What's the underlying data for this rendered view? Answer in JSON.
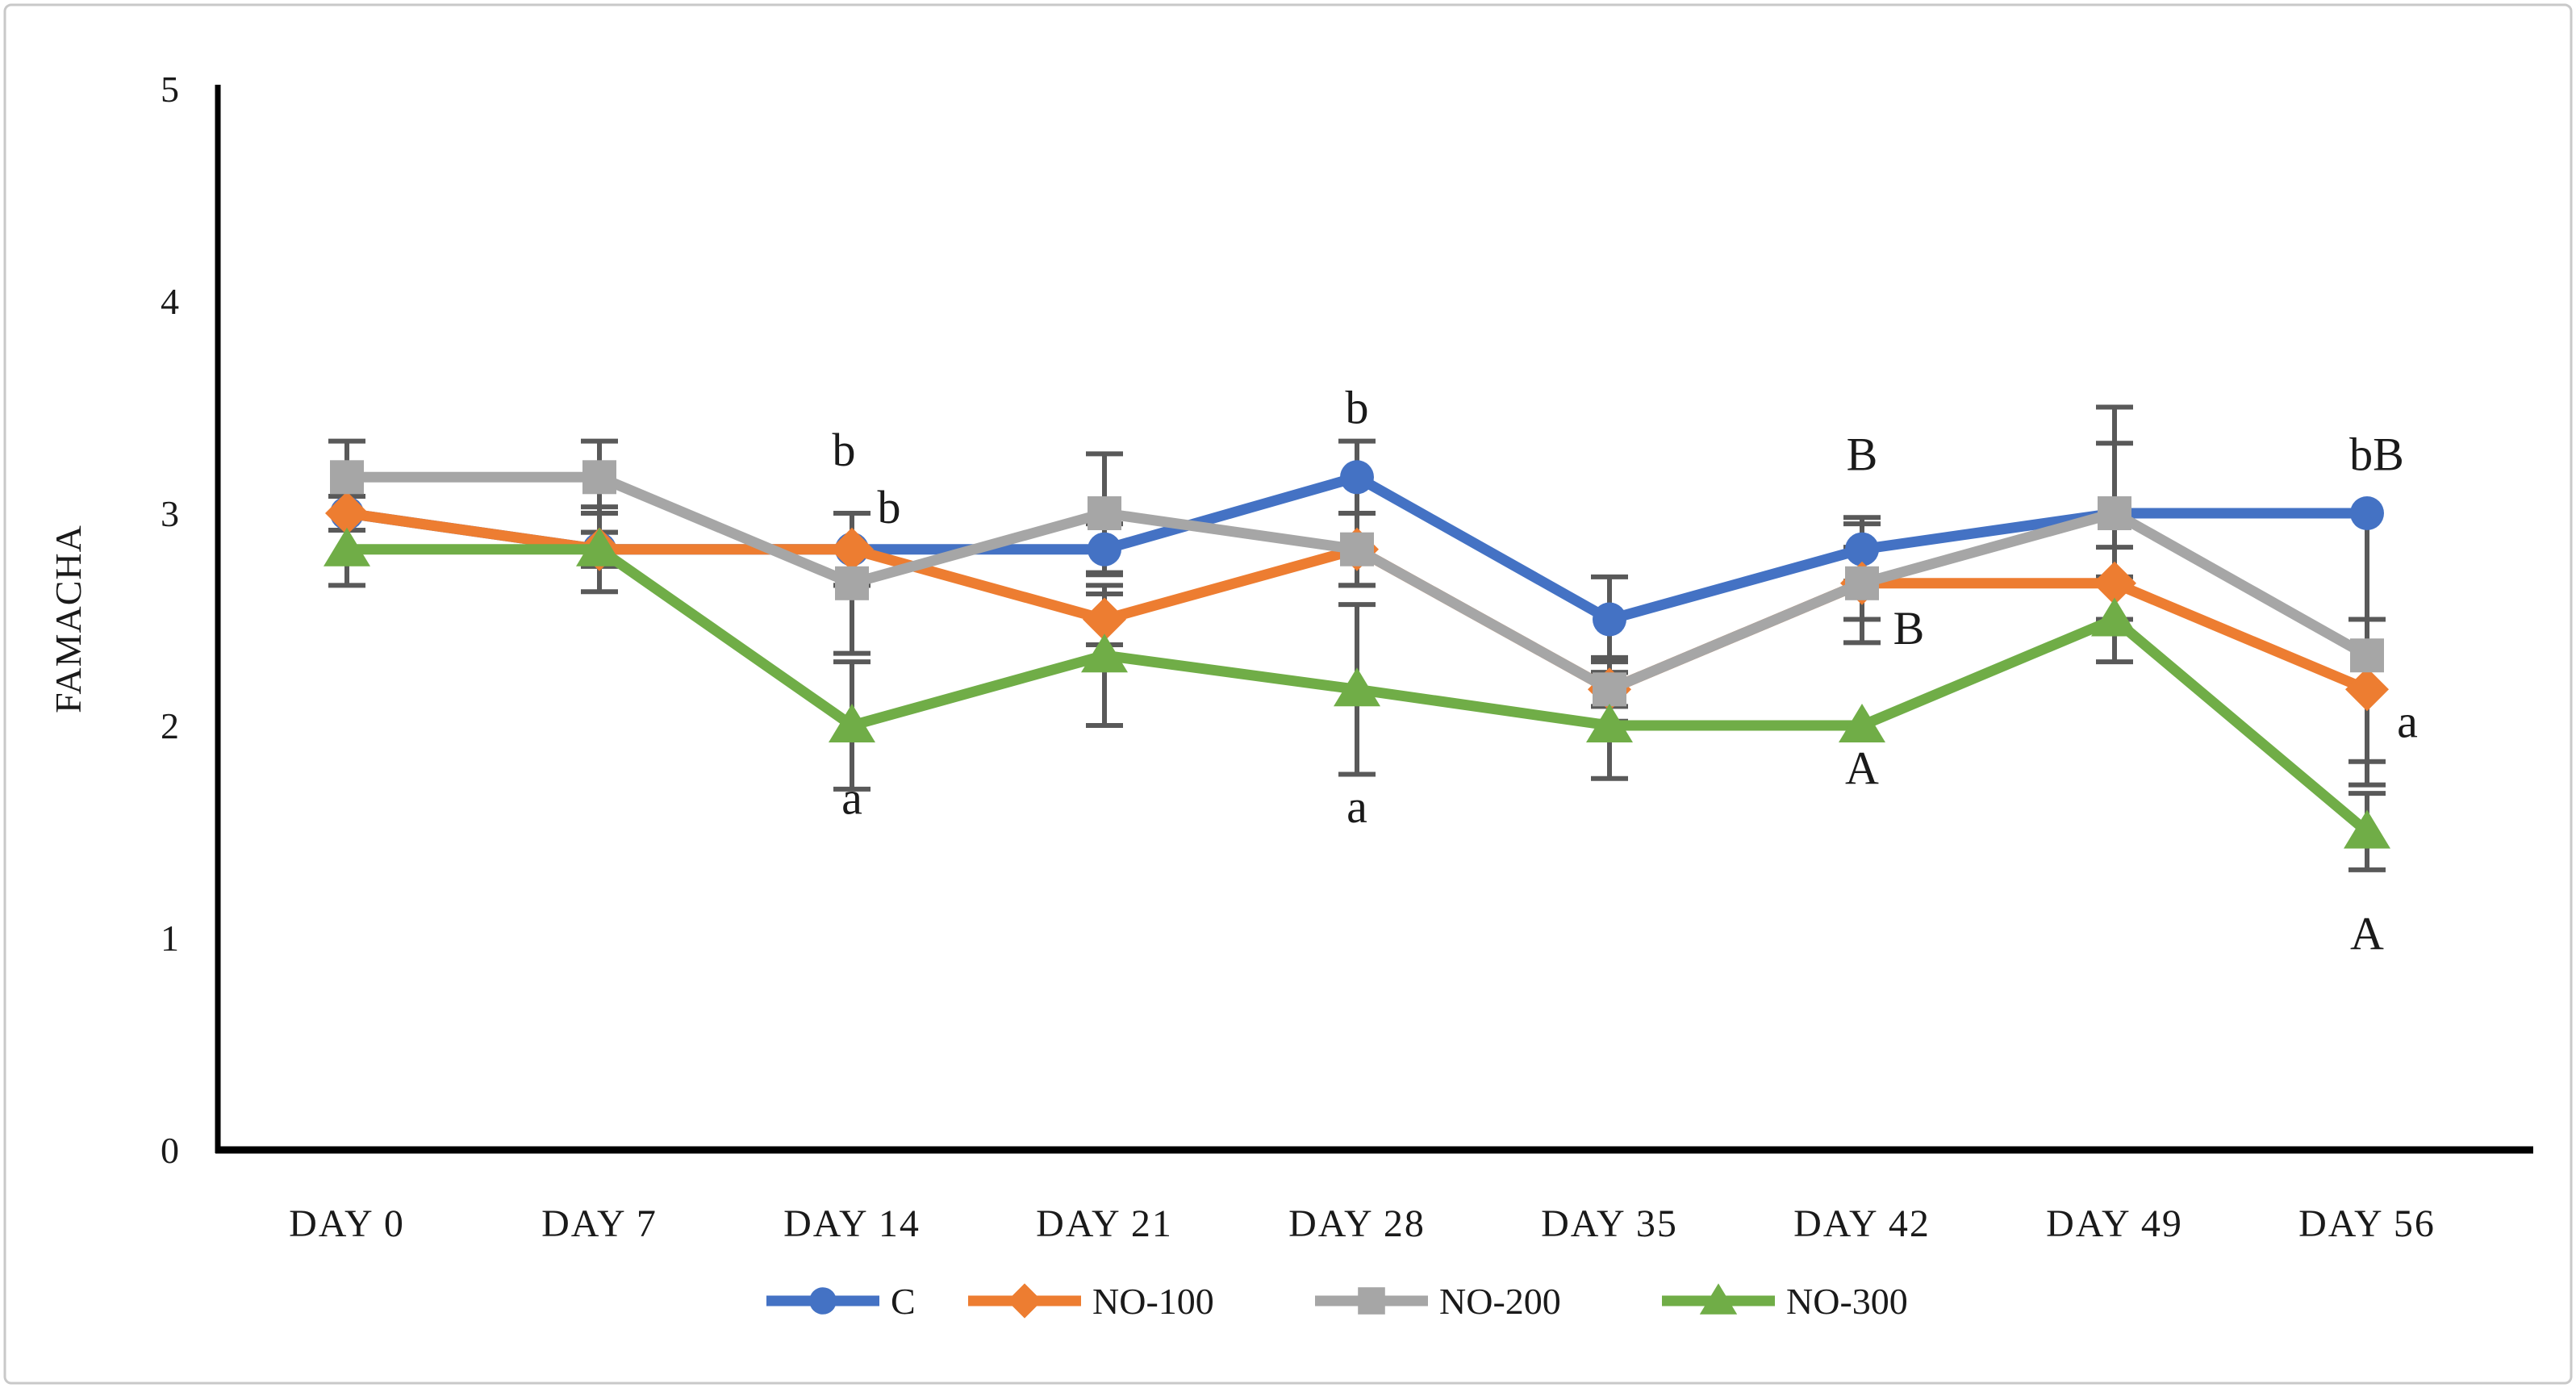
{
  "chart_data": {
    "type": "line",
    "title": "",
    "xlabel": "",
    "ylabel": "FAMACHA",
    "ylim": [
      0,
      5
    ],
    "yticks": [
      0,
      1,
      2,
      3,
      4,
      5
    ],
    "grid": false,
    "legend_position": "bottom",
    "error_bar_color": "#595959",
    "axis_color": "#000000",
    "frame_color": "#c9c9c9",
    "categories": [
      "DAY 0",
      "DAY 7",
      "DAY 14",
      "DAY 21",
      "DAY 28",
      "DAY 35",
      "DAY 42",
      "DAY 49",
      "DAY 56"
    ],
    "series": [
      {
        "name": "C",
        "color": "#4472C4",
        "marker": "circle",
        "values": [
          3.0,
          2.83,
          2.83,
          2.83,
          3.17,
          2.5,
          2.83,
          3.0,
          3.0
        ],
        "err_up": [
          0.08,
          0.08,
          0.17,
          0.12,
          0.17,
          0.2,
          0.15,
          0.33,
          0.0
        ],
        "err_down": [
          0.08,
          0.08,
          0.17,
          0.12,
          0.17,
          0.2,
          0.15,
          0.33,
          0.5
        ]
      },
      {
        "name": "NO-100",
        "color": "#ED7D31",
        "marker": "diamond",
        "values": [
          3.0,
          2.83,
          2.83,
          2.5,
          2.83,
          2.17,
          2.67,
          2.67,
          2.17
        ],
        "err_up": [
          0.08,
          0.08,
          0.17,
          0.12,
          0.17,
          0.08,
          0.17,
          0.17,
          0.33
        ],
        "err_down": [
          0.08,
          0.08,
          0.17,
          0.12,
          0.17,
          0.08,
          0.17,
          0.17,
          0.45
        ]
      },
      {
        "name": "NO-200",
        "color": "#A6A6A6",
        "marker": "square",
        "values": [
          3.17,
          3.17,
          2.67,
          3.0,
          2.83,
          2.17,
          2.67,
          3.0,
          2.33
        ],
        "err_up": [
          0.17,
          0.17,
          0.33,
          0.28,
          0.17,
          0.15,
          0.28,
          0.5,
          0.17
        ],
        "err_down": [
          0.17,
          0.17,
          0.33,
          0.28,
          0.17,
          0.15,
          0.28,
          0.5,
          0.5
        ]
      },
      {
        "name": "NO-300",
        "color": "#70AD47",
        "marker": "triangle",
        "values": [
          2.83,
          2.83,
          2.0,
          2.33,
          2.17,
          2.0,
          2.0,
          2.5,
          1.5
        ],
        "err_up": [
          0.17,
          0.2,
          0.3,
          0.33,
          0.4,
          0.25,
          0.0,
          0.2,
          0.18
        ],
        "err_down": [
          0.17,
          0.2,
          0.3,
          0.33,
          0.4,
          0.25,
          0.0,
          0.2,
          0.18
        ]
      }
    ],
    "annotations": [
      {
        "text": "b",
        "day": 2,
        "value": 3.3,
        "dx": -10
      },
      {
        "text": "b",
        "day": 2,
        "value": 3.03,
        "dx": 46
      },
      {
        "text": "a",
        "day": 2,
        "value": 1.66,
        "dx": 0
      },
      {
        "text": "b",
        "day": 4,
        "value": 3.5,
        "dx": 0
      },
      {
        "text": "a",
        "day": 4,
        "value": 1.62,
        "dx": 0
      },
      {
        "text": "B",
        "day": 6,
        "value": 3.28,
        "dx": 0
      },
      {
        "text": "B",
        "day": 6,
        "value": 2.46,
        "dx": 58
      },
      {
        "text": "A",
        "day": 6,
        "value": 1.8,
        "dx": 0
      },
      {
        "text": "bB",
        "day": 8,
        "value": 3.28,
        "dx": 12
      },
      {
        "text": "a",
        "day": 8,
        "value": 2.02,
        "dx": 50
      },
      {
        "text": "A",
        "day": 8,
        "value": 1.02,
        "dx": 0
      }
    ]
  }
}
